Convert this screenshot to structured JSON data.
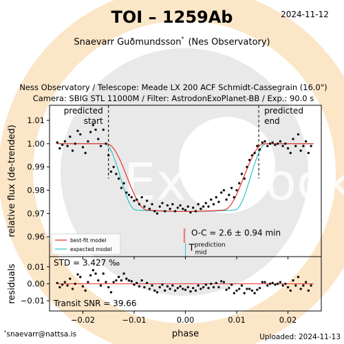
{
  "header": {
    "title": "TOI – 1259Ab",
    "date": "2024-11-12",
    "observer": "Snaevarr Guðmundsson",
    "observer_mark": "*",
    "observatory": "(Nes Observatory)",
    "equipment_line1": "Ness Observatory / Telescope: Meade LX 200 ACF Schmidt-Cassegrain (16.0\")",
    "equipment_line2": "Camera: SBIG STL 11000M / Filter: AstrodonExoPlanet-BB / Exp.: 90.0 s"
  },
  "footer": {
    "email": "snaevarr@nattsa.is",
    "email_mark": "*",
    "uploaded": "Uploaded: 2024-11-13"
  },
  "watermark": {
    "text": "ExoClock"
  },
  "colors": {
    "best_fit": "#e8302a",
    "expected": "#2ec4c4",
    "points": "#111111",
    "marker": "#f08080",
    "watermark_orange": "#fbe6c8",
    "watermark_grey": "#e9e9e9"
  },
  "chart_data": [
    {
      "type": "scatter",
      "panel": "light-curve",
      "xlabel": "",
      "ylabel": "relative flux (de-trended)",
      "xlim": [
        -0.0265,
        0.0265
      ],
      "ylim": [
        0.9515,
        1.0165
      ],
      "yticks": [
        0.96,
        0.97,
        0.98,
        0.99,
        1.0,
        1.01
      ],
      "ytick_labels": [
        "0.96",
        "0.97",
        "0.98",
        "0.99",
        "1.00",
        "1.01"
      ],
      "xticks": [
        -0.02,
        -0.01,
        0.0,
        0.01,
        0.02
      ],
      "legend": {
        "placement": "lower-left",
        "entries": [
          {
            "label": "best-fit model",
            "color": "#e8302a"
          },
          {
            "label": "expected model",
            "color": "#2ec4c4"
          }
        ]
      },
      "annotations": {
        "predicted_start": {
          "label_line1": "predicted",
          "label_line2": "start",
          "x": -0.015
        },
        "predicted_end": {
          "label_line1": "predicted",
          "label_line2": "end",
          "x": 0.0143
        },
        "oc_label": "O-C = 2.6 ± 0.94 min",
        "oc_marker_x": -0.0002,
        "t_mid_label": "T",
        "t_mid_sup": "prediction",
        "t_mid_sub": "mid"
      },
      "model": {
        "baseline": 1.0,
        "depth": 0.0285,
        "best_fit": {
          "t1": -0.0154,
          "t2": -0.0074,
          "t3": 0.0074,
          "t4": 0.0154
        },
        "expected": {
          "t1": -0.0158,
          "t2": -0.0096,
          "t3": 0.0096,
          "t4": 0.0158
        }
      },
      "series": [
        {
          "name": "data",
          "x": [
            -0.025,
            -0.0245,
            -0.024,
            -0.0235,
            -0.023,
            -0.0225,
            -0.022,
            -0.0215,
            -0.021,
            -0.0205,
            -0.02,
            -0.0195,
            -0.019,
            -0.0185,
            -0.018,
            -0.0175,
            -0.017,
            -0.0165,
            -0.016,
            -0.0155,
            -0.015,
            -0.0145,
            -0.014,
            -0.0135,
            -0.013,
            -0.0125,
            -0.012,
            -0.0115,
            -0.011,
            -0.0105,
            -0.01,
            -0.0095,
            -0.009,
            -0.0085,
            -0.008,
            -0.0075,
            -0.007,
            -0.0065,
            -0.006,
            -0.0055,
            -0.005,
            -0.0045,
            -0.004,
            -0.0035,
            -0.003,
            -0.0025,
            -0.002,
            -0.0015,
            -0.001,
            -0.0005,
            0.0,
            0.0005,
            0.001,
            0.0015,
            0.002,
            0.0025,
            0.003,
            0.0035,
            0.004,
            0.0045,
            0.005,
            0.0055,
            0.006,
            0.0065,
            0.007,
            0.0075,
            0.008,
            0.0085,
            0.009,
            0.0095,
            0.01,
            0.0105,
            0.011,
            0.0115,
            0.012,
            0.0125,
            0.013,
            0.0135,
            0.014,
            0.0145,
            0.015,
            0.0155,
            0.016,
            0.0165,
            0.017,
            0.0175,
            0.018,
            0.0185,
            0.019,
            0.0195,
            0.02,
            0.0205,
            0.021,
            0.0215,
            0.022,
            0.0225,
            0.023,
            0.0235,
            0.024,
            0.0245
          ],
          "y": [
            1.0005,
            0.998,
            0.9995,
            1.001,
            0.999,
            1.003,
            0.997,
            1.0,
            1.0055,
            1.004,
            0.9985,
            0.996,
            1.001,
            1.005,
            1.008,
            1.006,
            1.002,
            0.999,
            1.006,
            1.0,
            0.995,
            0.988,
            0.99,
            0.987,
            0.985,
            0.981,
            0.983,
            0.979,
            0.978,
            0.977,
            0.9755,
            0.976,
            0.974,
            0.977,
            0.973,
            0.9755,
            0.972,
            0.974,
            0.971,
            0.97,
            0.973,
            0.9745,
            0.971,
            0.9735,
            0.972,
            0.974,
            0.971,
            0.9725,
            0.9735,
            0.972,
            0.9715,
            0.973,
            0.9705,
            0.9725,
            0.971,
            0.974,
            0.972,
            0.973,
            0.9745,
            0.973,
            0.976,
            0.974,
            0.977,
            0.975,
            0.979,
            0.98,
            0.976,
            0.978,
            0.981,
            0.977,
            0.98,
            0.983,
            0.987,
            0.985,
            0.99,
            0.993,
            0.995,
            0.996,
            0.999,
            0.9975,
            1.0005,
            1.001,
            0.999,
            1.0,
            1.0005,
            0.9995,
            1.0,
            1.001,
            0.999,
            1.0,
            0.998,
            0.996,
            1.002,
            0.999,
            1.004,
            0.997,
            0.999,
            1.001,
            0.996,
            0.999
          ]
        }
      ]
    },
    {
      "type": "scatter",
      "panel": "residuals",
      "xlabel": "phase",
      "ylabel": "residuals",
      "xlim": [
        -0.0265,
        0.0265
      ],
      "ylim": [
        -0.016,
        0.016
      ],
      "yticks": [
        -0.01,
        0.0,
        0.01
      ],
      "ytick_labels": [
        "−0.01",
        "0.00",
        "0.01"
      ],
      "xticks": [
        -0.02,
        -0.01,
        0.0,
        0.01,
        0.02
      ],
      "xtick_labels": [
        "−0.02",
        "−0.01",
        "0.00",
        "0.01",
        "0.02"
      ],
      "annotations": {
        "std_label": "STD = 3.427 ‰",
        "snr_label": "Transit SNR = 39.66"
      },
      "series": [
        {
          "name": "residuals",
          "x": [
            -0.025,
            -0.0245,
            -0.024,
            -0.0235,
            -0.023,
            -0.0225,
            -0.022,
            -0.0215,
            -0.021,
            -0.0205,
            -0.02,
            -0.0195,
            -0.019,
            -0.0185,
            -0.018,
            -0.0175,
            -0.017,
            -0.0165,
            -0.016,
            -0.0155,
            -0.015,
            -0.0145,
            -0.014,
            -0.0135,
            -0.013,
            -0.0125,
            -0.012,
            -0.0115,
            -0.011,
            -0.0105,
            -0.01,
            -0.0095,
            -0.009,
            -0.0085,
            -0.008,
            -0.0075,
            -0.007,
            -0.0065,
            -0.006,
            -0.0055,
            -0.005,
            -0.0045,
            -0.004,
            -0.0035,
            -0.003,
            -0.0025,
            -0.002,
            -0.0015,
            -0.001,
            -0.0005,
            0.0,
            0.0005,
            0.001,
            0.0015,
            0.002,
            0.0025,
            0.003,
            0.0035,
            0.004,
            0.0045,
            0.005,
            0.0055,
            0.006,
            0.0065,
            0.007,
            0.0075,
            0.008,
            0.0085,
            0.009,
            0.0095,
            0.01,
            0.0105,
            0.011,
            0.0115,
            0.012,
            0.0125,
            0.013,
            0.0135,
            0.014,
            0.0145,
            0.015,
            0.0155,
            0.016,
            0.0165,
            0.017,
            0.0175,
            0.018,
            0.0185,
            0.019,
            0.0195,
            0.02,
            0.0205,
            0.021,
            0.0215,
            0.022,
            0.0225,
            0.023,
            0.0235,
            0.024,
            0.0245
          ],
          "y": [
            0.0005,
            -0.002,
            -0.0005,
            0.001,
            -0.001,
            0.003,
            -0.003,
            0.0,
            0.0055,
            0.004,
            -0.0015,
            -0.004,
            0.001,
            0.005,
            0.008,
            0.006,
            0.002,
            -0.001,
            0.006,
            0.001,
            -0.002,
            -0.005,
            0.001,
            0.002,
            0.004,
            0.002,
            0.006,
            0.003,
            0.002,
            0.0015,
            -0.0005,
            0.0005,
            -0.0015,
            0.002,
            -0.002,
            0.0005,
            -0.003,
            -0.001,
            -0.004,
            -0.005,
            -0.002,
            -0.0005,
            -0.004,
            -0.0015,
            -0.003,
            -0.001,
            -0.004,
            -0.0025,
            -0.0015,
            -0.003,
            -0.0035,
            -0.002,
            -0.0045,
            -0.0025,
            -0.004,
            -0.001,
            -0.003,
            -0.002,
            -0.0005,
            -0.0025,
            0.0,
            -0.002,
            0.0005,
            -0.002,
            0.0015,
            0.001,
            -0.0035,
            -0.0025,
            -0.0005,
            -0.0055,
            -0.004,
            -0.003,
            -0.001,
            -0.0055,
            -0.003,
            -0.003,
            -0.004,
            -0.0055,
            -0.0035,
            -0.0025,
            0.001,
            0.001,
            -0.001,
            0.0,
            0.0005,
            -0.0005,
            0.0,
            0.001,
            -0.001,
            0.0,
            -0.002,
            -0.004,
            0.002,
            -0.001,
            0.004,
            -0.003,
            -0.001,
            0.001,
            -0.004,
            -0.001
          ]
        }
      ]
    }
  ]
}
